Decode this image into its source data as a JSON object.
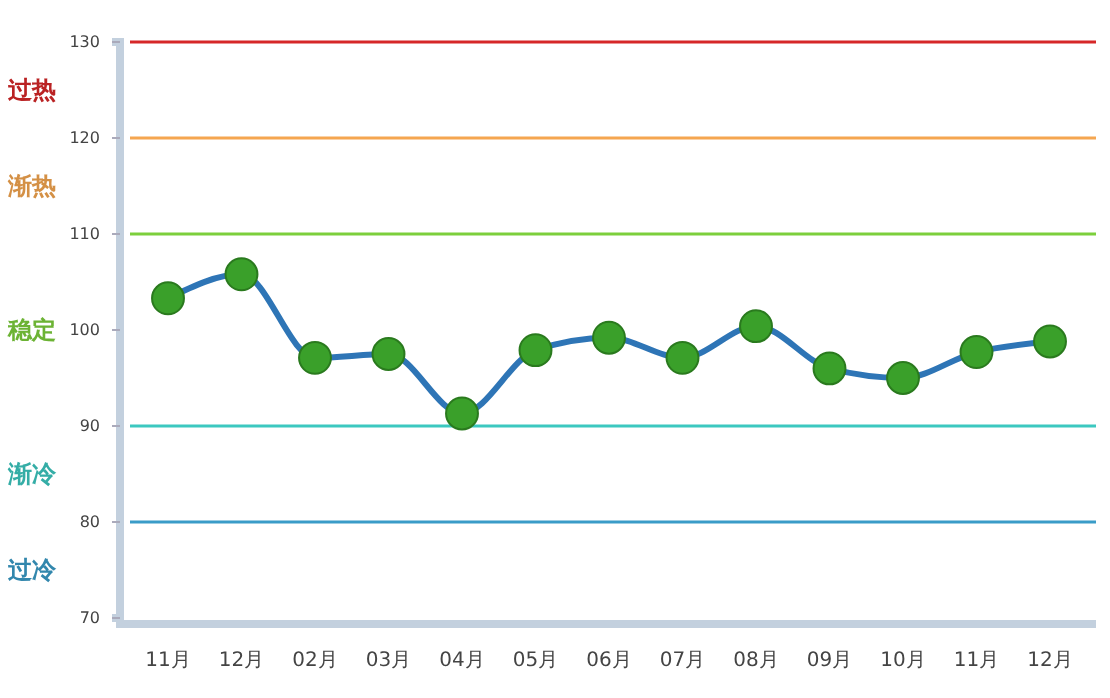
{
  "chart_data": {
    "type": "line",
    "categories": [
      "11月",
      "12月",
      "02月",
      "03月",
      "04月",
      "05月",
      "06月",
      "07月",
      "08月",
      "09月",
      "10月",
      "11月",
      "12月"
    ],
    "series": [
      {
        "color": "#2e75b6",
        "values": [
          103.3,
          105.8,
          97.1,
          97.5,
          91.3,
          97.9,
          99.2,
          97.1,
          100.4,
          96.0,
          95.0,
          97.7,
          98.8
        ]
      }
    ],
    "ylim": [
      70,
      130
    ],
    "yticks": [
      70,
      80,
      90,
      100,
      110,
      120,
      130
    ],
    "marker": "circle",
    "grid": false,
    "ref_lines": [
      {
        "axis": "y",
        "value": 130,
        "color": "#d62728"
      },
      {
        "axis": "y",
        "value": 120,
        "color": "#f5a650"
      },
      {
        "axis": "y",
        "value": 110,
        "color": "#7ccf3c"
      },
      {
        "axis": "y",
        "value": 90,
        "color": "#3cc8c0"
      },
      {
        "axis": "y",
        "value": 80,
        "color": "#3a9cc8"
      }
    ],
    "annotations": [
      "过热",
      "渐热",
      "稳定",
      "渐冷",
      "过冷"
    ]
  }
}
